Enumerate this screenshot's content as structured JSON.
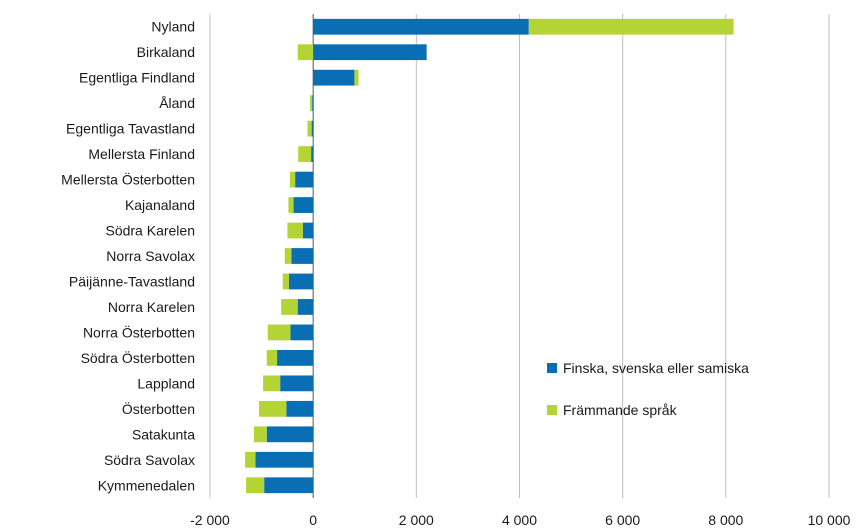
{
  "chart_data": {
    "type": "bar",
    "orientation": "horizontal",
    "stacked": "diverging",
    "title": "",
    "xlabel": "",
    "ylabel": "",
    "categories": [
      "Nyland",
      "Birkaland",
      "Egentliga Findland",
      "Åland",
      "Egentliga Tavastland",
      "Mellersta Finland",
      "Mellersta Österbotten",
      "Kajanaland",
      "Södra Karelen",
      "Norra Savolax",
      "Päijänne-Tavastland",
      "Norra Karelen",
      "Norra Österbotten",
      "Södra Österbotten",
      "Lappland",
      "Österbotten",
      "Satakunta",
      "Södra Savolax",
      "Kymmenedalen"
    ],
    "series": [
      {
        "name": "Finska, svenska eller samiska",
        "color": "#0a6eb4",
        "values": [
          4180,
          2200,
          800,
          -20,
          -30,
          -40,
          -350,
          -380,
          -200,
          -420,
          -470,
          -300,
          -440,
          -700,
          -640,
          -520,
          -900,
          -1120,
          -950
        ]
      },
      {
        "name": "Främmande språk",
        "color": "#b4d334",
        "values": [
          3970,
          -300,
          80,
          -40,
          -80,
          -250,
          -100,
          -100,
          -300,
          -130,
          -120,
          -320,
          -440,
          -200,
          -330,
          -530,
          -250,
          -200,
          -350
        ]
      }
    ],
    "xlim": [
      -2000,
      10000
    ],
    "xticks": [
      -2000,
      0,
      2000,
      4000,
      6000,
      8000,
      10000
    ],
    "xtick_labels": [
      "-2 000",
      "0",
      "2 000",
      "4 000",
      "6 000",
      "8 000",
      "10 000"
    ],
    "grid": "vertical",
    "legend_placement": "bottom-right"
  }
}
